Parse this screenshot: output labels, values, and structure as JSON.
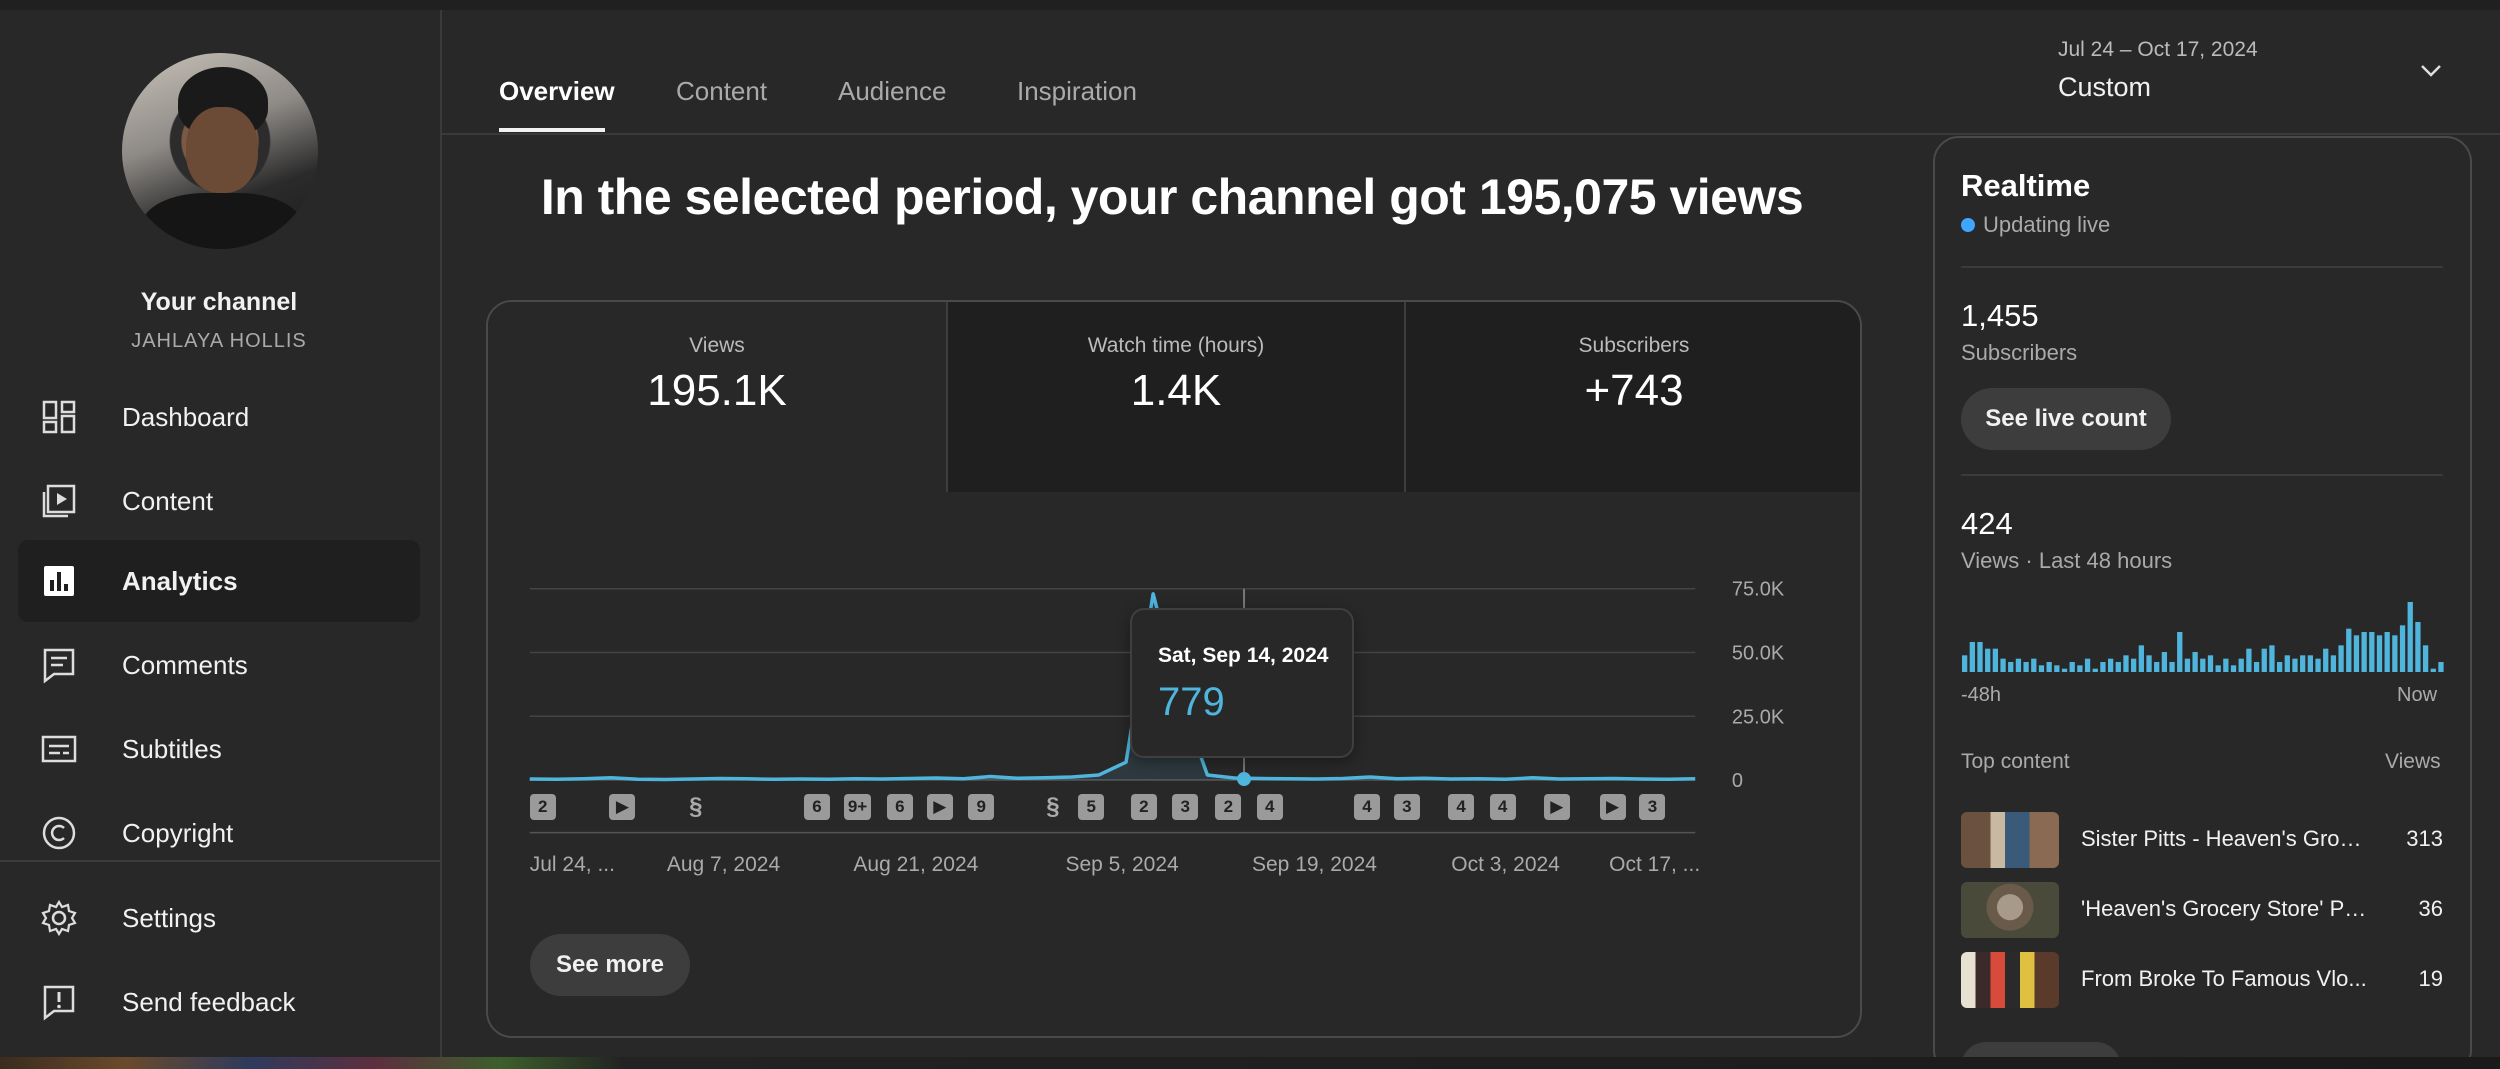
{
  "sidebar": {
    "channel_title": "Your channel",
    "channel_handle": "JAHLAYA HOLLIS",
    "items": [
      {
        "label": "Dashboard",
        "icon": "dashboard-icon"
      },
      {
        "label": "Content",
        "icon": "content-icon"
      },
      {
        "label": "Analytics",
        "icon": "analytics-icon",
        "active": true
      },
      {
        "label": "Comments",
        "icon": "comments-icon"
      },
      {
        "label": "Subtitles",
        "icon": "subtitles-icon"
      },
      {
        "label": "Copyright",
        "icon": "copyright-icon"
      }
    ],
    "footer_items": [
      {
        "label": "Settings",
        "icon": "gear-icon"
      },
      {
        "label": "Send feedback",
        "icon": "feedback-icon"
      }
    ]
  },
  "tabs": [
    "Overview",
    "Content",
    "Audience",
    "Inspiration"
  ],
  "date_range": {
    "range": "Jul 24 – Oct 17, 2024",
    "preset": "Custom"
  },
  "headline": "In the selected period, your channel got 195,075 views",
  "metrics": [
    {
      "label": "Views",
      "value": "195.1K"
    },
    {
      "label": "Watch time (hours)",
      "value": "1.4K"
    },
    {
      "label": "Subscribers",
      "value": "+743"
    }
  ],
  "chart_data": {
    "type": "line",
    "series": [
      {
        "name": "Views"
      }
    ],
    "x": [
      "Jul 24",
      "Jul 26",
      "Jul 28",
      "Jul 30",
      "Aug 1",
      "Aug 3",
      "Aug 5",
      "Aug 7",
      "Aug 9",
      "Aug 11",
      "Aug 13",
      "Aug 15",
      "Aug 17",
      "Aug 19",
      "Aug 21",
      "Aug 23",
      "Aug 25",
      "Aug 27",
      "Aug 29",
      "Aug 31",
      "Sep 2",
      "Sep 4",
      "Sep 6",
      "Sep 8",
      "Sep 10",
      "Sep 12",
      "Sep 14",
      "Sep 16",
      "Sep 18",
      "Sep 20",
      "Sep 22",
      "Sep 24",
      "Sep 26",
      "Sep 28",
      "Sep 30",
      "Oct 2",
      "Oct 4",
      "Oct 6",
      "Oct 8",
      "Oct 10",
      "Oct 12",
      "Oct 14",
      "Oct 16",
      "Oct 17"
    ],
    "values": [
      400,
      300,
      500,
      900,
      300,
      200,
      400,
      600,
      500,
      300,
      400,
      300,
      500,
      400,
      600,
      800,
      500,
      1400,
      700,
      900,
      1200,
      2000,
      7000,
      73000,
      32000,
      2000,
      800,
      600,
      500,
      400,
      600,
      1200,
      500,
      700,
      400,
      500,
      300,
      900,
      400,
      500,
      600,
      400,
      300,
      500
    ],
    "x_tick_labels": [
      "Jul 24, ...",
      "Aug 7, 2024",
      "Aug 21, 2024",
      "Sep 5, 2024",
      "Sep 19, 2024",
      "Oct 3, 2024",
      "Oct 17, ..."
    ],
    "y_tick_labels": [
      "75.0K",
      "50.0K",
      "25.0K",
      "0"
    ],
    "ylim": [
      0,
      75000
    ],
    "grid": true,
    "tooltip": {
      "date": "Sat, Sep 14, 2024",
      "value": "779"
    },
    "markers": [
      "2",
      "play",
      "shorts",
      "6",
      "9+",
      "6",
      "play",
      "9",
      "shorts",
      "5",
      "2",
      "3",
      "2",
      "4",
      "4",
      "3",
      "4",
      "4",
      "play",
      "play",
      "3"
    ],
    "color": "#4fb5dc"
  },
  "see_more_label": "See more",
  "realtime": {
    "title": "Realtime",
    "status": "Updating live",
    "subscribers_value": "1,455",
    "subscribers_label": "Subscribers",
    "live_count_button": "See live count",
    "views_value": "424",
    "views_label": "Views · Last 48 hours",
    "bars": [
      5,
      9,
      9,
      7,
      7,
      4,
      3,
      4,
      3,
      4,
      2,
      3,
      2,
      1,
      3,
      2,
      4,
      1,
      3,
      4,
      3,
      5,
      4,
      8,
      5,
      3,
      6,
      3,
      12,
      4,
      6,
      4,
      5,
      2,
      4,
      2,
      4,
      7,
      3,
      7,
      8,
      3,
      5,
      4,
      5,
      5,
      4,
      7,
      5,
      8,
      13,
      11,
      12,
      12,
      11,
      12,
      11,
      14,
      21,
      15,
      8,
      1,
      3
    ],
    "axis_left": "-48h",
    "axis_right": "Now",
    "top_content_label": "Top content",
    "views_col_label": "Views",
    "top_content": [
      {
        "title": "Sister Pitts - Heaven's Grocery Store",
        "views": "313"
      },
      {
        "title": "'Heaven's Grocery Store' Po...",
        "views": "36"
      },
      {
        "title": "From Broke To Famous Vlo...",
        "views": "19"
      }
    ],
    "accent": "#3ea6ff"
  }
}
